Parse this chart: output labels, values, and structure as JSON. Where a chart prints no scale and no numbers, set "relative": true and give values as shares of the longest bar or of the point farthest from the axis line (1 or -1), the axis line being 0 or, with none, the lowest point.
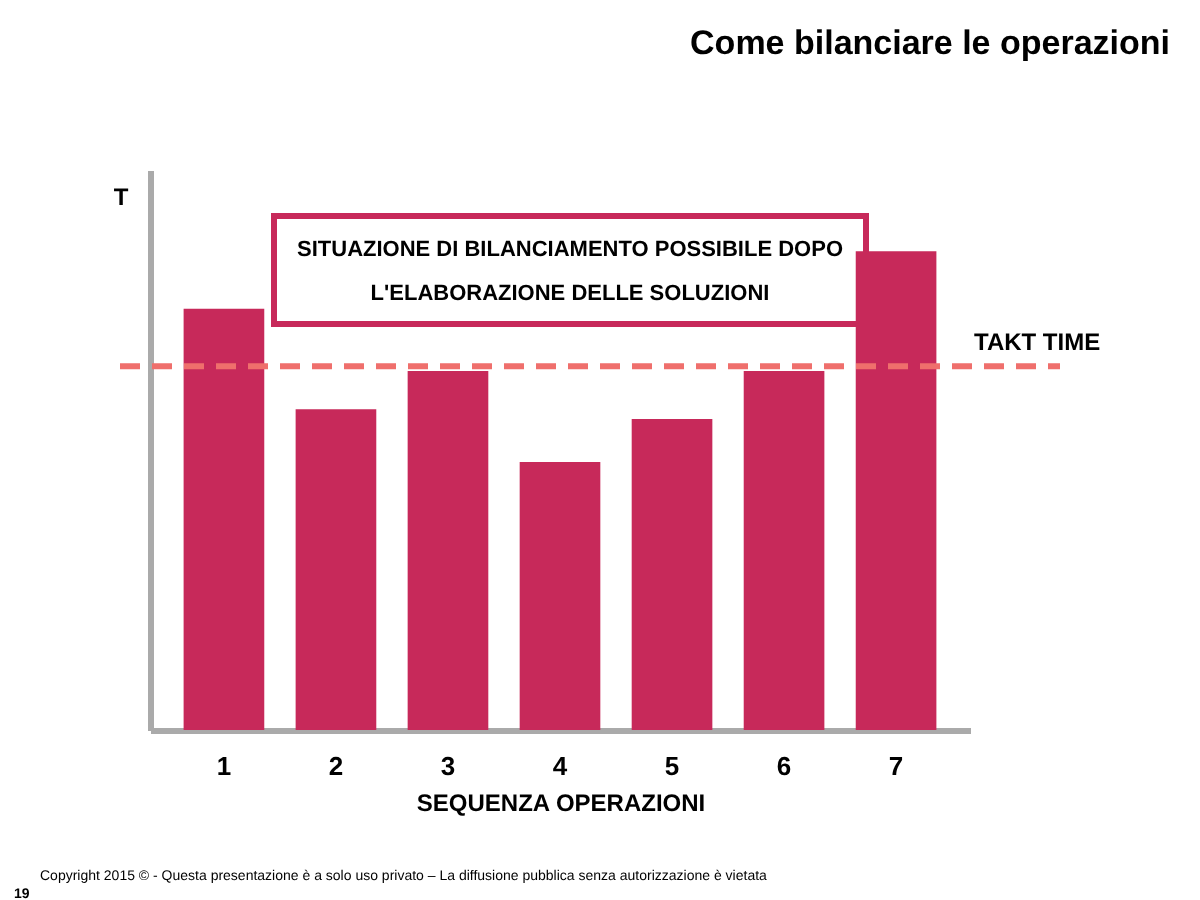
{
  "chart_data": {
    "type": "bar",
    "title": "Come bilanciare le operazioni",
    "xlabel": "SEQUENZA OPERAZIONI",
    "ylabel": "T",
    "categories": [
      "1",
      "2",
      "3",
      "4",
      "5",
      "6",
      "7"
    ],
    "values": [
      0.88,
      0.67,
      0.75,
      0.56,
      0.65,
      0.75,
      1
    ],
    "color": "#c7295a",
    "relative": true,
    "grid": false,
    "legend": false,
    "ref_lines": [
      {
        "axis": "y",
        "value": 0.76,
        "label": "TAKT TIME",
        "color": "#ef6f6c",
        "line_style": "dashed"
      }
    ],
    "annotations": [
      "SITUAZIONE DI BILANCIAMENTO POSSIBILE DOPO\nL'ELABORAZIONE DELLE SOLUZIONI",
      "Copyright 2015 © - Questa presentazione è a solo uso privato – La diffusione pubblica senza autorizzazione è vietata",
      "19"
    ]
  }
}
